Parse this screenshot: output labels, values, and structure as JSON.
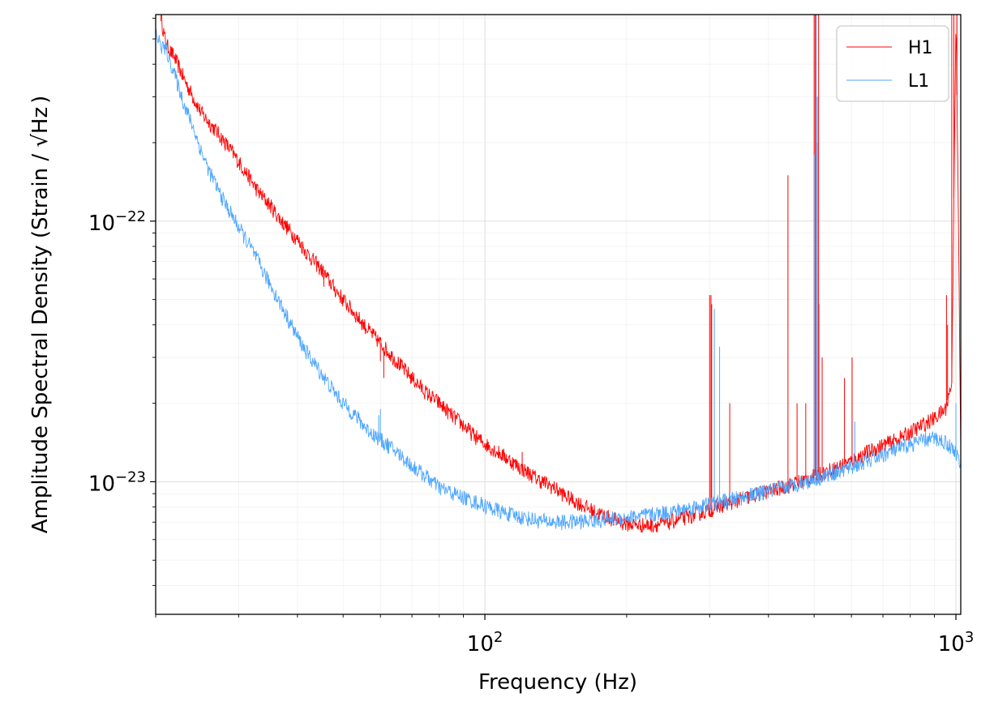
{
  "chart_data": {
    "type": "line",
    "title": "",
    "xlabel": "Frequency (Hz)",
    "ylabel_main": "Amplitude Spectral Density (Strain / ",
    "ylabel_sqrt": "Hz",
    "ylabel_close": ")",
    "x_scale": "log",
    "y_scale": "log",
    "xlim": [
      20,
      1024
    ],
    "ylim": [
      3.1e-24,
      6.2e-22
    ],
    "grid": true,
    "legend_position": "top-right",
    "x_ticks": [
      {
        "value": 100,
        "base": "10",
        "exp": "2"
      },
      {
        "value": 1000,
        "base": "10",
        "exp": "3"
      }
    ],
    "y_ticks": [
      {
        "value": 1e-23,
        "base": "10",
        "exp": "−23"
      },
      {
        "value": 1e-22,
        "base": "10",
        "exp": "−22"
      }
    ],
    "series": [
      {
        "name": "H1",
        "color": "#ff0000",
        "points": [
          [
            20.5,
            6.2e-22
          ],
          [
            21,
            4.8e-22
          ],
          [
            22,
            4.2e-22
          ],
          [
            23,
            3.5e-22
          ],
          [
            24,
            3e-22
          ],
          [
            25,
            2.6e-22
          ],
          [
            27,
            2.2e-22
          ],
          [
            29,
            1.85e-22
          ],
          [
            31,
            1.55e-22
          ],
          [
            33,
            1.3e-22
          ],
          [
            35,
            1.15e-22
          ],
          [
            37,
            1e-22
          ],
          [
            40,
            8.5e-23
          ],
          [
            42,
            7.5e-23
          ],
          [
            45,
            6.5e-23
          ],
          [
            48,
            5.5e-23
          ],
          [
            50,
            5e-23
          ],
          [
            53,
            4.4e-23
          ],
          [
            56,
            3.9e-23
          ],
          [
            60,
            3.4e-23
          ],
          [
            65,
            2.9e-23
          ],
          [
            70,
            2.5e-23
          ],
          [
            75,
            2.2e-23
          ],
          [
            80,
            2e-23
          ],
          [
            85,
            1.8e-23
          ],
          [
            90,
            1.65e-23
          ],
          [
            95,
            1.5e-23
          ],
          [
            100,
            1.4e-23
          ],
          [
            110,
            1.25e-23
          ],
          [
            120,
            1.12e-23
          ],
          [
            130,
            1.02e-23
          ],
          [
            140,
            9.5e-24
          ],
          [
            150,
            8.7e-24
          ],
          [
            160,
            8.2e-24
          ],
          [
            170,
            7.7e-24
          ],
          [
            180,
            7.4e-24
          ],
          [
            190,
            7.1e-24
          ],
          [
            200,
            6.9e-24
          ],
          [
            220,
            6.8e-24
          ],
          [
            240,
            6.9e-24
          ],
          [
            260,
            7.2e-24
          ],
          [
            280,
            7.5e-24
          ],
          [
            300,
            7.8e-24
          ],
          [
            330,
            8.3e-24
          ],
          [
            360,
            8.7e-24
          ],
          [
            400,
            9.2e-24
          ],
          [
            450,
            9.8e-24
          ],
          [
            500,
            1.05e-23
          ],
          [
            550,
            1.12e-23
          ],
          [
            600,
            1.2e-23
          ],
          [
            650,
            1.3e-23
          ],
          [
            700,
            1.38e-23
          ],
          [
            750,
            1.45e-23
          ],
          [
            800,
            1.55e-23
          ],
          [
            850,
            1.65e-23
          ],
          [
            900,
            1.75e-23
          ],
          [
            950,
            1.9e-23
          ],
          [
            980,
            2.4e-23
          ],
          [
            1000,
            6.2e-22
          ],
          [
            1010,
            1.5e-22
          ],
          [
            1024,
            1.3e-23
          ]
        ],
        "peaks": [
          [
            37.5,
            1e-22
          ],
          [
            45.5,
            5.6e-23
          ],
          [
            60,
            2.9e-23
          ],
          [
            61,
            2.5e-23
          ],
          [
            120,
            1.3e-23
          ],
          [
            300,
            5.2e-23
          ],
          [
            302,
            5.2e-23
          ],
          [
            303,
            4.8e-23
          ],
          [
            331,
            2e-23
          ],
          [
            440,
            1.5e-22
          ],
          [
            460,
            2e-23
          ],
          [
            480,
            2e-23
          ],
          [
            500,
            6.2e-22
          ],
          [
            503,
            6.2e-22
          ],
          [
            505,
            6.2e-22
          ],
          [
            508,
            2e-22
          ],
          [
            511,
            6.2e-22
          ],
          [
            520,
            3e-23
          ],
          [
            580,
            2.5e-23
          ],
          [
            602,
            3e-23
          ],
          [
            700,
            1.4e-23
          ],
          [
            955,
            5.2e-23
          ],
          [
            960,
            4e-23
          ],
          [
            980,
            6.2e-22
          ],
          [
            990,
            6.2e-22
          ],
          [
            1005,
            6.2e-22
          ]
        ]
      },
      {
        "name": "L1",
        "color": "#4da6ff",
        "points": [
          [
            20,
            5.3e-22
          ],
          [
            20.5,
            4.7e-22
          ],
          [
            21,
            4.6e-22
          ],
          [
            22,
            3.6e-22
          ],
          [
            23,
            2.8e-22
          ],
          [
            24,
            2.3e-22
          ],
          [
            25,
            1.85e-22
          ],
          [
            26,
            1.55e-22
          ],
          [
            27,
            1.35e-22
          ],
          [
            28,
            1.18e-22
          ],
          [
            30,
            9.5e-23
          ],
          [
            32,
            7.8e-23
          ],
          [
            34,
            6.3e-23
          ],
          [
            36,
            5.2e-23
          ],
          [
            38,
            4.3e-23
          ],
          [
            40,
            3.6e-23
          ],
          [
            42,
            3.1e-23
          ],
          [
            45,
            2.6e-23
          ],
          [
            48,
            2.2e-23
          ],
          [
            50,
            2e-23
          ],
          [
            53,
            1.8e-23
          ],
          [
            56,
            1.6e-23
          ],
          [
            60,
            1.45e-23
          ],
          [
            65,
            1.3e-23
          ],
          [
            70,
            1.15e-23
          ],
          [
            75,
            1.05e-23
          ],
          [
            80,
            9.5e-24
          ],
          [
            90,
            8.7e-24
          ],
          [
            100,
            8.1e-24
          ],
          [
            110,
            7.6e-24
          ],
          [
            120,
            7.3e-24
          ],
          [
            130,
            7.1e-24
          ],
          [
            140,
            7e-24
          ],
          [
            150,
            7e-24
          ],
          [
            170,
            7.1e-24
          ],
          [
            200,
            7.3e-24
          ],
          [
            230,
            7.5e-24
          ],
          [
            260,
            7.8e-24
          ],
          [
            300,
            8.2e-24
          ],
          [
            350,
            8.7e-24
          ],
          [
            400,
            9.2e-24
          ],
          [
            450,
            9.7e-24
          ],
          [
            500,
            1.02e-23
          ],
          [
            550,
            1.08e-23
          ],
          [
            600,
            1.14e-23
          ],
          [
            650,
            1.2e-23
          ],
          [
            700,
            1.27e-23
          ],
          [
            750,
            1.33e-23
          ],
          [
            800,
            1.39e-23
          ],
          [
            850,
            1.44e-23
          ],
          [
            900,
            1.47e-23
          ],
          [
            950,
            1.42e-23
          ],
          [
            1000,
            1.3e-23
          ],
          [
            1024,
            1.15e-23
          ]
        ],
        "peaks": [
          [
            59.5,
            1.8e-23
          ],
          [
            60,
            1.9e-23
          ],
          [
            307,
            4.6e-23
          ],
          [
            315,
            3.3e-23
          ],
          [
            500,
            1.8e-22
          ],
          [
            505,
            6.2e-22
          ],
          [
            508,
            3e-22
          ],
          [
            513,
            4.8e-23
          ],
          [
            610,
            1.7e-23
          ],
          [
            1000,
            2e-23
          ]
        ]
      }
    ]
  }
}
